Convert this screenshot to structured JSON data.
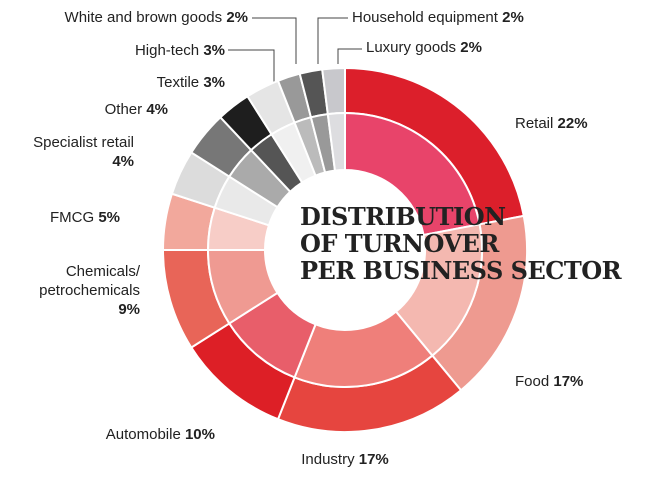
{
  "chart_data": {
    "type": "donut",
    "title": [
      "DISTRIBUTION",
      "OF TURNOVER",
      "PER BUSINESS SECTOR"
    ],
    "categories": [
      "Retail",
      "Food",
      "Industry",
      "Automobile",
      "Chemicals/ petrochemicals",
      "FMCG",
      "Specialist retail",
      "Other",
      "Textile",
      "High-tech",
      "White and brown goods",
      "Household equipment",
      "Luxury goods"
    ],
    "values": [
      22,
      17,
      17,
      10,
      9,
      5,
      4,
      4,
      3,
      3,
      2,
      2,
      2
    ],
    "value_labels": [
      "22%",
      "17%",
      "17%",
      "10%",
      "9%",
      "5%",
      "4%",
      "4%",
      "3%",
      "3%",
      "2%",
      "2%",
      "2%"
    ],
    "colors": [
      "#dc1f2b",
      "#ee9a90",
      "#e6453f",
      "#dd1f26",
      "#e86558",
      "#f2a89c",
      "#dcdcdc",
      "#777777",
      "#1e1e1e",
      "#e5e5e5",
      "#999999",
      "#555555",
      "#c8c8cc"
    ],
    "inner_colors": [
      "#e8446a",
      "#f4b8b0",
      "#ef7f7a",
      "#e85e6a",
      "#ef9a92",
      "#f7cdc7",
      "#e9e9e9",
      "#aaaaaa",
      "#555555",
      "#f0f0f0",
      "#bbbbbb",
      "#999999",
      "#dddde0"
    ]
  }
}
